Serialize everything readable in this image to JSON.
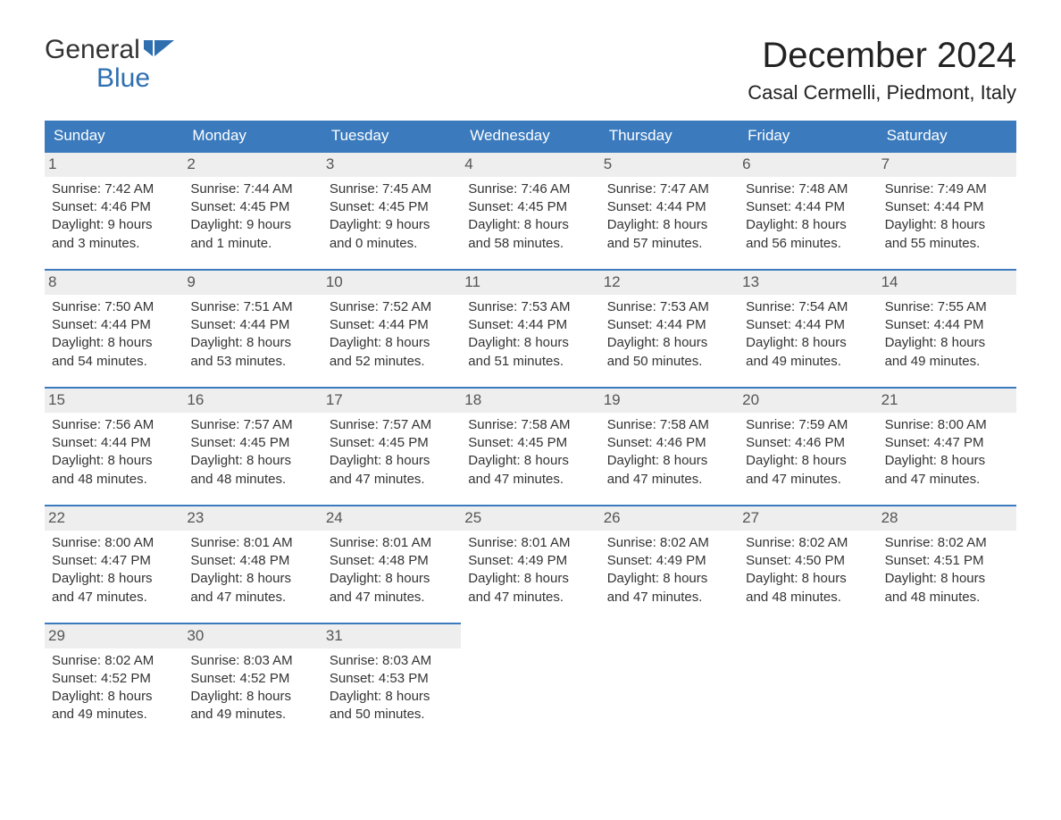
{
  "logo": {
    "general": "General",
    "blue": "Blue",
    "flag_color": "#2f6fb0"
  },
  "title": "December 2024",
  "location": "Casal Cermelli, Piedmont, Italy",
  "colors": {
    "header_bg": "#3a7abd",
    "header_text": "#ffffff",
    "daynum_bg": "#eeeeee",
    "body_text": "#333333",
    "border": "#3a7abd"
  },
  "day_headers": [
    "Sunday",
    "Monday",
    "Tuesday",
    "Wednesday",
    "Thursday",
    "Friday",
    "Saturday"
  ],
  "weeks": [
    [
      {
        "num": "1",
        "sunrise": "Sunrise: 7:42 AM",
        "sunset": "Sunset: 4:46 PM",
        "d1": "Daylight: 9 hours",
        "d2": "and 3 minutes."
      },
      {
        "num": "2",
        "sunrise": "Sunrise: 7:44 AM",
        "sunset": "Sunset: 4:45 PM",
        "d1": "Daylight: 9 hours",
        "d2": "and 1 minute."
      },
      {
        "num": "3",
        "sunrise": "Sunrise: 7:45 AM",
        "sunset": "Sunset: 4:45 PM",
        "d1": "Daylight: 9 hours",
        "d2": "and 0 minutes."
      },
      {
        "num": "4",
        "sunrise": "Sunrise: 7:46 AM",
        "sunset": "Sunset: 4:45 PM",
        "d1": "Daylight: 8 hours",
        "d2": "and 58 minutes."
      },
      {
        "num": "5",
        "sunrise": "Sunrise: 7:47 AM",
        "sunset": "Sunset: 4:44 PM",
        "d1": "Daylight: 8 hours",
        "d2": "and 57 minutes."
      },
      {
        "num": "6",
        "sunrise": "Sunrise: 7:48 AM",
        "sunset": "Sunset: 4:44 PM",
        "d1": "Daylight: 8 hours",
        "d2": "and 56 minutes."
      },
      {
        "num": "7",
        "sunrise": "Sunrise: 7:49 AM",
        "sunset": "Sunset: 4:44 PM",
        "d1": "Daylight: 8 hours",
        "d2": "and 55 minutes."
      }
    ],
    [
      {
        "num": "8",
        "sunrise": "Sunrise: 7:50 AM",
        "sunset": "Sunset: 4:44 PM",
        "d1": "Daylight: 8 hours",
        "d2": "and 54 minutes."
      },
      {
        "num": "9",
        "sunrise": "Sunrise: 7:51 AM",
        "sunset": "Sunset: 4:44 PM",
        "d1": "Daylight: 8 hours",
        "d2": "and 53 minutes."
      },
      {
        "num": "10",
        "sunrise": "Sunrise: 7:52 AM",
        "sunset": "Sunset: 4:44 PM",
        "d1": "Daylight: 8 hours",
        "d2": "and 52 minutes."
      },
      {
        "num": "11",
        "sunrise": "Sunrise: 7:53 AM",
        "sunset": "Sunset: 4:44 PM",
        "d1": "Daylight: 8 hours",
        "d2": "and 51 minutes."
      },
      {
        "num": "12",
        "sunrise": "Sunrise: 7:53 AM",
        "sunset": "Sunset: 4:44 PM",
        "d1": "Daylight: 8 hours",
        "d2": "and 50 minutes."
      },
      {
        "num": "13",
        "sunrise": "Sunrise: 7:54 AM",
        "sunset": "Sunset: 4:44 PM",
        "d1": "Daylight: 8 hours",
        "d2": "and 49 minutes."
      },
      {
        "num": "14",
        "sunrise": "Sunrise: 7:55 AM",
        "sunset": "Sunset: 4:44 PM",
        "d1": "Daylight: 8 hours",
        "d2": "and 49 minutes."
      }
    ],
    [
      {
        "num": "15",
        "sunrise": "Sunrise: 7:56 AM",
        "sunset": "Sunset: 4:44 PM",
        "d1": "Daylight: 8 hours",
        "d2": "and 48 minutes."
      },
      {
        "num": "16",
        "sunrise": "Sunrise: 7:57 AM",
        "sunset": "Sunset: 4:45 PM",
        "d1": "Daylight: 8 hours",
        "d2": "and 48 minutes."
      },
      {
        "num": "17",
        "sunrise": "Sunrise: 7:57 AM",
        "sunset": "Sunset: 4:45 PM",
        "d1": "Daylight: 8 hours",
        "d2": "and 47 minutes."
      },
      {
        "num": "18",
        "sunrise": "Sunrise: 7:58 AM",
        "sunset": "Sunset: 4:45 PM",
        "d1": "Daylight: 8 hours",
        "d2": "and 47 minutes."
      },
      {
        "num": "19",
        "sunrise": "Sunrise: 7:58 AM",
        "sunset": "Sunset: 4:46 PM",
        "d1": "Daylight: 8 hours",
        "d2": "and 47 minutes."
      },
      {
        "num": "20",
        "sunrise": "Sunrise: 7:59 AM",
        "sunset": "Sunset: 4:46 PM",
        "d1": "Daylight: 8 hours",
        "d2": "and 47 minutes."
      },
      {
        "num": "21",
        "sunrise": "Sunrise: 8:00 AM",
        "sunset": "Sunset: 4:47 PM",
        "d1": "Daylight: 8 hours",
        "d2": "and 47 minutes."
      }
    ],
    [
      {
        "num": "22",
        "sunrise": "Sunrise: 8:00 AM",
        "sunset": "Sunset: 4:47 PM",
        "d1": "Daylight: 8 hours",
        "d2": "and 47 minutes."
      },
      {
        "num": "23",
        "sunrise": "Sunrise: 8:01 AM",
        "sunset": "Sunset: 4:48 PM",
        "d1": "Daylight: 8 hours",
        "d2": "and 47 minutes."
      },
      {
        "num": "24",
        "sunrise": "Sunrise: 8:01 AM",
        "sunset": "Sunset: 4:48 PM",
        "d1": "Daylight: 8 hours",
        "d2": "and 47 minutes."
      },
      {
        "num": "25",
        "sunrise": "Sunrise: 8:01 AM",
        "sunset": "Sunset: 4:49 PM",
        "d1": "Daylight: 8 hours",
        "d2": "and 47 minutes."
      },
      {
        "num": "26",
        "sunrise": "Sunrise: 8:02 AM",
        "sunset": "Sunset: 4:49 PM",
        "d1": "Daylight: 8 hours",
        "d2": "and 47 minutes."
      },
      {
        "num": "27",
        "sunrise": "Sunrise: 8:02 AM",
        "sunset": "Sunset: 4:50 PM",
        "d1": "Daylight: 8 hours",
        "d2": "and 48 minutes."
      },
      {
        "num": "28",
        "sunrise": "Sunrise: 8:02 AM",
        "sunset": "Sunset: 4:51 PM",
        "d1": "Daylight: 8 hours",
        "d2": "and 48 minutes."
      }
    ],
    [
      {
        "num": "29",
        "sunrise": "Sunrise: 8:02 AM",
        "sunset": "Sunset: 4:52 PM",
        "d1": "Daylight: 8 hours",
        "d2": "and 49 minutes."
      },
      {
        "num": "30",
        "sunrise": "Sunrise: 8:03 AM",
        "sunset": "Sunset: 4:52 PM",
        "d1": "Daylight: 8 hours",
        "d2": "and 49 minutes."
      },
      {
        "num": "31",
        "sunrise": "Sunrise: 8:03 AM",
        "sunset": "Sunset: 4:53 PM",
        "d1": "Daylight: 8 hours",
        "d2": "and 50 minutes."
      },
      null,
      null,
      null,
      null
    ]
  ]
}
